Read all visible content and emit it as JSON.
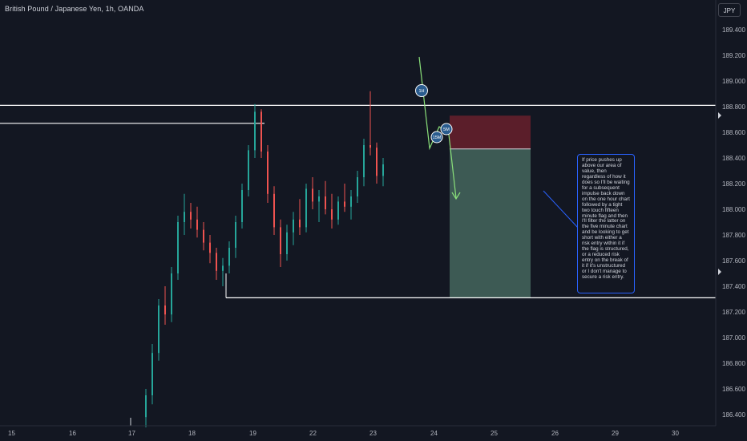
{
  "header": {
    "title": "British Pound / Japanese Yen, 1h, OANDA",
    "currency": "JPY"
  },
  "chart_data": {
    "type": "candlestick",
    "symbol": "GBPJPY",
    "interval": "1h",
    "x_ticks": [
      "15",
      "16",
      "17",
      "18",
      "19",
      "22",
      "23",
      "24",
      "25",
      "26",
      "29",
      "30"
    ],
    "y_ticks": [
      "189.400",
      "189.200",
      "189.000",
      "188.800",
      "188.600",
      "188.400",
      "188.200",
      "188.000",
      "187.800",
      "187.600",
      "187.400",
      "187.200",
      "187.000",
      "186.800",
      "186.600",
      "186.400"
    ],
    "ylim": [
      186.32,
      189.52
    ],
    "grid": false,
    "candles": [
      {
        "o": 186.38,
        "h": 186.6,
        "l": 186.3,
        "c": 186.55
      },
      {
        "o": 186.55,
        "h": 186.95,
        "l": 186.48,
        "c": 186.88
      },
      {
        "o": 186.88,
        "h": 187.3,
        "l": 186.82,
        "c": 187.25
      },
      {
        "o": 187.25,
        "h": 187.4,
        "l": 187.1,
        "c": 187.18
      },
      {
        "o": 187.18,
        "h": 187.55,
        "l": 187.12,
        "c": 187.5
      },
      {
        "o": 187.5,
        "h": 187.95,
        "l": 187.45,
        "c": 187.9
      },
      {
        "o": 187.9,
        "h": 188.12,
        "l": 187.8,
        "c": 187.98
      },
      {
        "o": 187.98,
        "h": 188.05,
        "l": 187.85,
        "c": 187.92
      },
      {
        "o": 187.92,
        "h": 188.02,
        "l": 187.78,
        "c": 187.84
      },
      {
        "o": 187.84,
        "h": 187.9,
        "l": 187.68,
        "c": 187.74
      },
      {
        "o": 187.74,
        "h": 187.8,
        "l": 187.58,
        "c": 187.66
      },
      {
        "o": 187.66,
        "h": 187.7,
        "l": 187.45,
        "c": 187.52
      },
      {
        "o": 187.52,
        "h": 187.62,
        "l": 187.4,
        "c": 187.56
      },
      {
        "o": 187.56,
        "h": 187.75,
        "l": 187.5,
        "c": 187.7
      },
      {
        "o": 187.7,
        "h": 187.95,
        "l": 187.62,
        "c": 187.9
      },
      {
        "o": 187.9,
        "h": 188.2,
        "l": 187.85,
        "c": 188.15
      },
      {
        "o": 188.15,
        "h": 188.5,
        "l": 188.1,
        "c": 188.46
      },
      {
        "o": 188.46,
        "h": 188.82,
        "l": 188.4,
        "c": 188.76
      },
      {
        "o": 188.76,
        "h": 188.78,
        "l": 188.4,
        "c": 188.45
      },
      {
        "o": 188.45,
        "h": 188.5,
        "l": 188.05,
        "c": 188.12
      },
      {
        "o": 188.12,
        "h": 188.18,
        "l": 187.8,
        "c": 187.86
      },
      {
        "o": 187.86,
        "h": 187.92,
        "l": 187.55,
        "c": 187.65
      },
      {
        "o": 187.65,
        "h": 187.88,
        "l": 187.6,
        "c": 187.82
      },
      {
        "o": 187.82,
        "h": 187.98,
        "l": 187.72,
        "c": 187.92
      },
      {
        "o": 187.92,
        "h": 188.08,
        "l": 187.8,
        "c": 187.86
      },
      {
        "o": 187.86,
        "h": 188.2,
        "l": 187.82,
        "c": 188.16
      },
      {
        "o": 188.16,
        "h": 188.25,
        "l": 188.0,
        "c": 188.06
      },
      {
        "o": 188.06,
        "h": 188.15,
        "l": 187.9,
        "c": 188.1
      },
      {
        "o": 188.1,
        "h": 188.22,
        "l": 187.96,
        "c": 188.0
      },
      {
        "o": 188.0,
        "h": 188.12,
        "l": 187.85,
        "c": 187.92
      },
      {
        "o": 187.92,
        "h": 188.1,
        "l": 187.88,
        "c": 188.06
      },
      {
        "o": 188.06,
        "h": 188.2,
        "l": 187.98,
        "c": 188.02
      },
      {
        "o": 188.02,
        "h": 188.15,
        "l": 187.92,
        "c": 188.1
      },
      {
        "o": 188.1,
        "h": 188.3,
        "l": 188.05,
        "c": 188.25
      },
      {
        "o": 188.25,
        "h": 188.55,
        "l": 188.18,
        "c": 188.5
      },
      {
        "o": 188.5,
        "h": 188.92,
        "l": 188.42,
        "c": 188.48
      },
      {
        "o": 188.48,
        "h": 188.52,
        "l": 188.2,
        "c": 188.26
      },
      {
        "o": 188.26,
        "h": 188.4,
        "l": 188.18,
        "c": 188.35
      }
    ],
    "levels": [
      {
        "name": "resistance-line",
        "price": 188.81
      },
      {
        "name": "previous-high-line",
        "price": 188.67
      },
      {
        "name": "support-line",
        "price": 187.31
      }
    ],
    "position": {
      "type": "short",
      "entry": 188.47,
      "stop": 188.73,
      "target": 187.31
    },
    "annotations": [
      {
        "label": "1H"
      },
      {
        "label": "15M"
      },
      {
        "label": "5M"
      }
    ],
    "note": "If price pushes up above our area of value, then regardless of how it does so I'll be waiting for a subsequent impulse back down on the one hour chart followed by a tight two touch fifteen minute flag and then I'll filter the latter on the five minute chart and be looking to get short with either a risk entry within it if the flag is structured, or a reduced risk entry on the break of it if it's unstructured or I don't manage to secure a risk entry.",
    "colors": {
      "background": "#131722",
      "up": "#26a69a",
      "down": "#ef5350",
      "level_line": "#ffffff",
      "stop_zone": "#5b1e2a",
      "target_zone": "#3d5a54",
      "arrow": "#8ae07a",
      "marker_fill": "#2a5c8f"
    }
  }
}
